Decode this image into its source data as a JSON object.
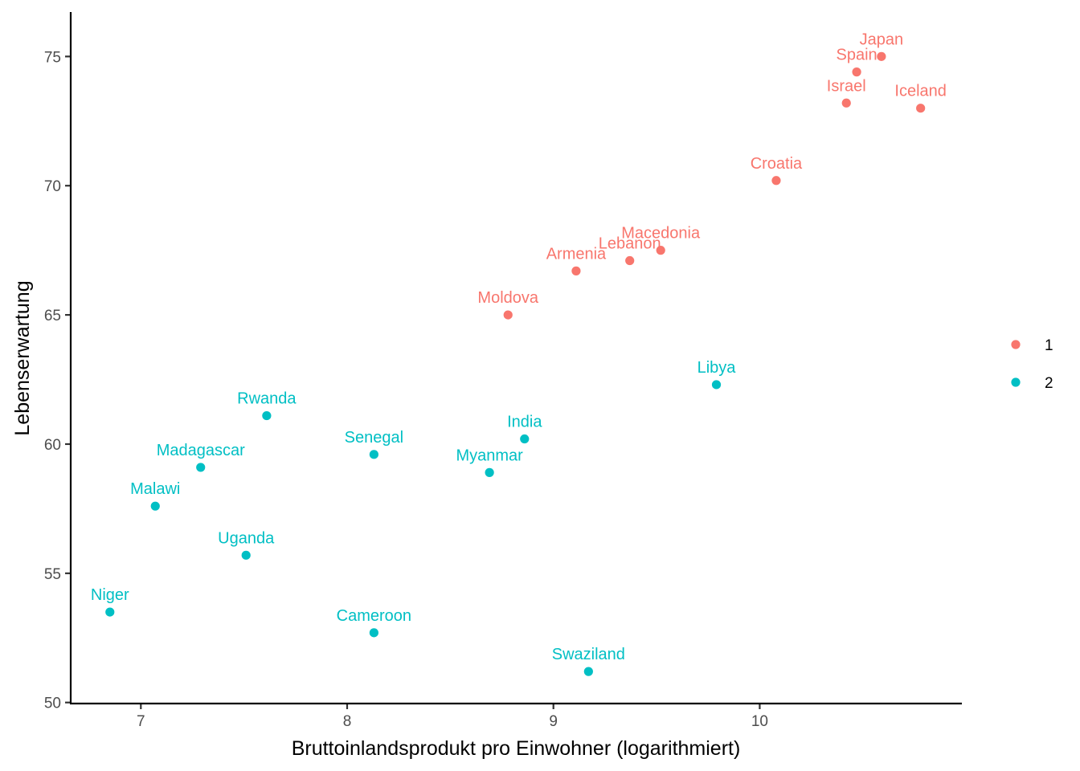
{
  "chart_data": {
    "type": "scatter",
    "title": "",
    "xlabel": "Bruttoinlandsprodukt pro Einwohner (logarithmiert)",
    "ylabel": "Lebenserwartung",
    "xlim": [
      6.66,
      10.98
    ],
    "ylim": [
      49.96,
      76.72
    ],
    "x_ticks": [
      7,
      8,
      9,
      10
    ],
    "y_ticks": [
      50,
      55,
      60,
      65,
      70,
      75
    ],
    "grid": false,
    "legend": {
      "position": "right",
      "entries": [
        {
          "label": "1",
          "color": "#F8766D"
        },
        {
          "label": "2",
          "color": "#00BFC4"
        }
      ]
    },
    "series": [
      {
        "group": "1",
        "color": "#F8766D",
        "points": [
          {
            "label": "Japan",
            "x": 10.59,
            "y": 75.0
          },
          {
            "label": "Spain",
            "x": 10.47,
            "y": 74.4
          },
          {
            "label": "Israel",
            "x": 10.42,
            "y": 73.2
          },
          {
            "label": "Iceland",
            "x": 10.78,
            "y": 73.0
          },
          {
            "label": "Croatia",
            "x": 10.08,
            "y": 70.2
          },
          {
            "label": "Macedonia",
            "x": 9.52,
            "y": 67.5
          },
          {
            "label": "Lebanon",
            "x": 9.37,
            "y": 67.1
          },
          {
            "label": "Armenia",
            "x": 9.11,
            "y": 66.7
          },
          {
            "label": "Moldova",
            "x": 8.78,
            "y": 65.0
          }
        ]
      },
      {
        "group": "2",
        "color": "#00BFC4",
        "points": [
          {
            "label": "Libya",
            "x": 9.79,
            "y": 62.3
          },
          {
            "label": "Rwanda",
            "x": 7.61,
            "y": 61.1
          },
          {
            "label": "India",
            "x": 8.86,
            "y": 60.2
          },
          {
            "label": "Senegal",
            "x": 8.13,
            "y": 59.6
          },
          {
            "label": "Madagascar",
            "x": 7.29,
            "y": 59.1
          },
          {
            "label": "Myanmar",
            "x": 8.69,
            "y": 58.9
          },
          {
            "label": "Malawi",
            "x": 7.07,
            "y": 57.6
          },
          {
            "label": "Uganda",
            "x": 7.51,
            "y": 55.7
          },
          {
            "label": "Niger",
            "x": 6.85,
            "y": 53.5
          },
          {
            "label": "Cameroon",
            "x": 8.13,
            "y": 52.7
          },
          {
            "label": "Swaziland",
            "x": 9.17,
            "y": 51.2
          }
        ]
      }
    ]
  }
}
